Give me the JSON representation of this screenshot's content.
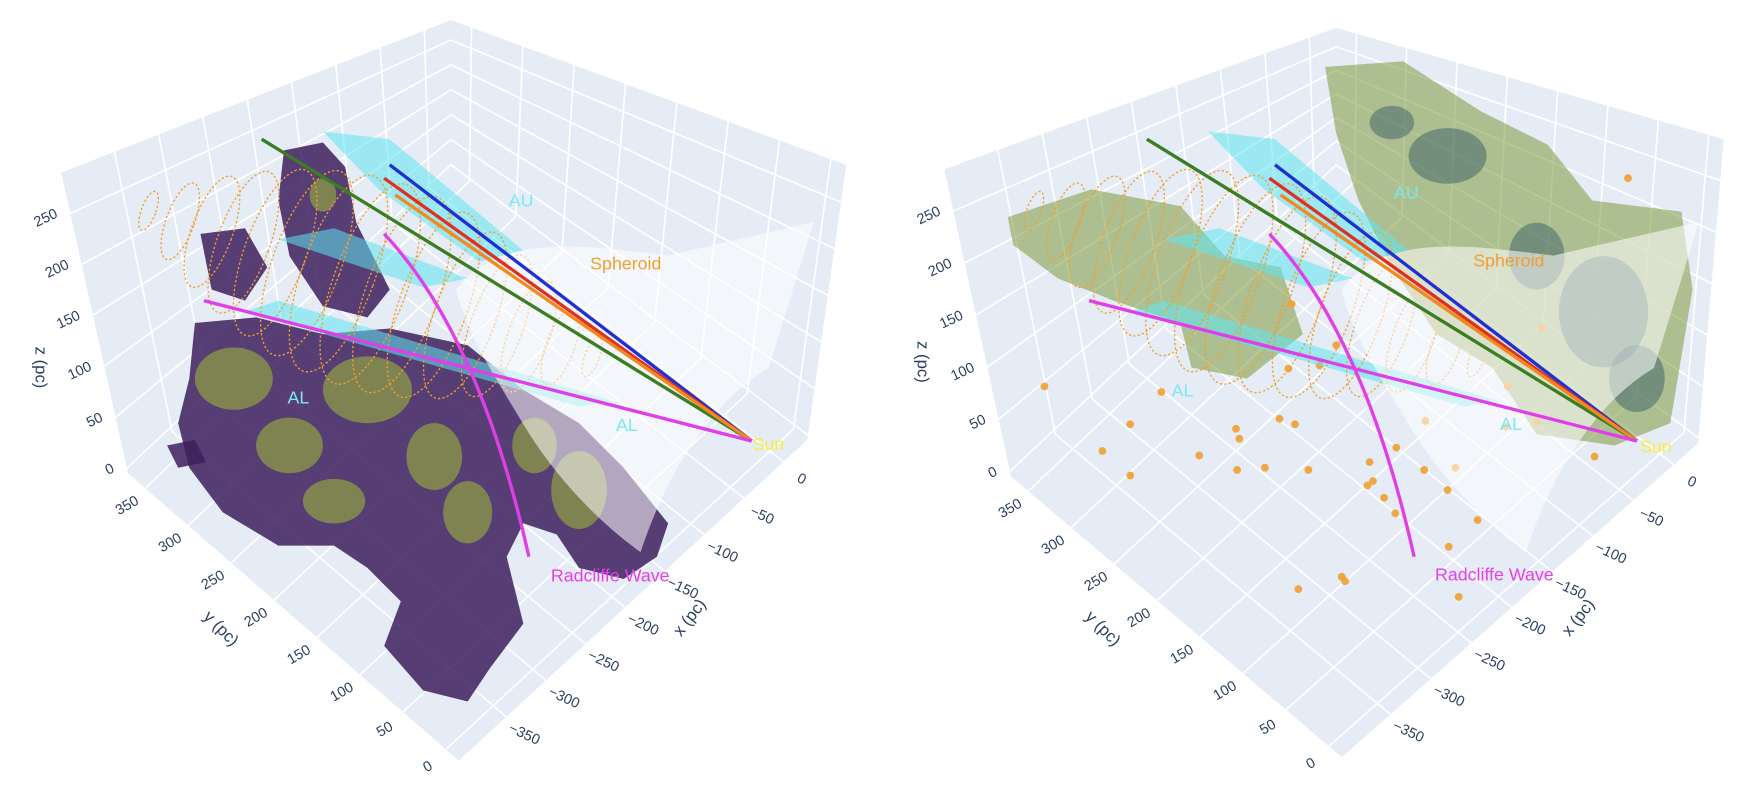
{
  "chart_data": [
    {
      "type": "scatter3d",
      "xlabel": "x (pc)",
      "ylabel": "y (pc)",
      "zlabel": "z (pc)",
      "xlim": [
        -410,
        30
      ],
      "ylim": [
        -15,
        370
      ],
      "zlim": [
        -5,
        290
      ],
      "xticks": [
        0,
        {
          "value": -50,
          "label": "−50"
        },
        {
          "value": -100,
          "label": "−100"
        },
        {
          "value": -150,
          "label": "−150"
        },
        {
          "value": -200,
          "label": "−200"
        },
        {
          "value": -250,
          "label": "−250"
        },
        {
          "value": -300,
          "label": "−300"
        },
        {
          "value": -350,
          "label": "−350"
        }
      ],
      "yticks": [
        0,
        50,
        100,
        150,
        200,
        250,
        300,
        350
      ],
      "zticks": [
        0,
        50,
        100,
        150,
        200,
        250
      ],
      "annotations": [
        "AU",
        "Spheroid",
        "AL",
        "AL",
        "Sun",
        "Radcliffe Wave"
      ]
    },
    {
      "type": "scatter3d",
      "xlabel": "x (pc)",
      "ylabel": "y (pc)",
      "zlabel": "z (pc)",
      "xlim": [
        -410,
        30
      ],
      "ylim": [
        -15,
        370
      ],
      "zlim": [
        -5,
        290
      ],
      "xticks": [
        0,
        {
          "value": -50,
          "label": "−50"
        },
        {
          "value": -100,
          "label": "−100"
        },
        {
          "value": -150,
          "label": "−150"
        },
        {
          "value": -200,
          "label": "−200"
        },
        {
          "value": -250,
          "label": "−250"
        },
        {
          "value": -300,
          "label": "−300"
        },
        {
          "value": -350,
          "label": "−350"
        }
      ],
      "yticks": [
        0,
        50,
        100,
        150,
        200,
        250,
        300,
        350
      ],
      "zticks": [
        0,
        50,
        100,
        150,
        200,
        250
      ],
      "annotations": [
        "AU",
        "Spheroid",
        "AL",
        "AL",
        "Sun",
        "Radcliffe Wave"
      ]
    }
  ]
}
